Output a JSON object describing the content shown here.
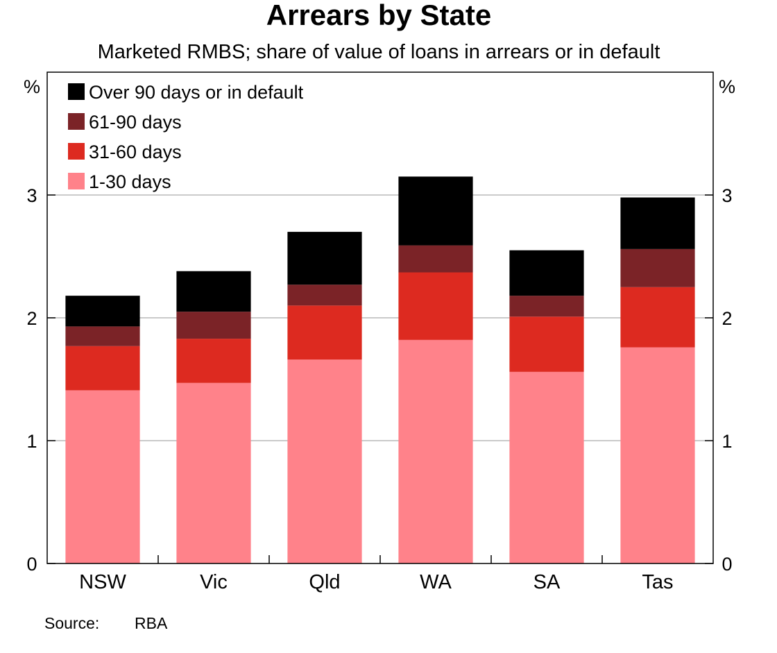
{
  "chart_data": {
    "type": "bar",
    "stacked": true,
    "title": "Arrears by State",
    "subtitle": "Marketed RMBS; share of value of loans in arrears or in default",
    "ylabel_left": "%",
    "ylabel_right": "%",
    "ylim": [
      0,
      4
    ],
    "yticks": [
      0,
      1,
      2,
      3
    ],
    "grid": true,
    "legend_position": "top-left",
    "categories": [
      "NSW",
      "Vic",
      "Qld",
      "WA",
      "SA",
      "Tas"
    ],
    "series": [
      {
        "name": "1-30 days",
        "color": "#ff828a",
        "values": [
          1.41,
          1.47,
          1.66,
          1.82,
          1.56,
          1.76
        ]
      },
      {
        "name": "31-60 days",
        "color": "#dd2a20",
        "values": [
          0.36,
          0.36,
          0.44,
          0.55,
          0.45,
          0.49
        ]
      },
      {
        "name": "61-90 days",
        "color": "#7b2327",
        "values": [
          0.16,
          0.22,
          0.17,
          0.22,
          0.17,
          0.31
        ]
      },
      {
        "name": "Over 90 days or in default",
        "color": "#000000",
        "values": [
          0.25,
          0.33,
          0.43,
          0.56,
          0.37,
          0.42
        ]
      }
    ],
    "legend_order": [
      3,
      2,
      1,
      0
    ],
    "source_label": "Source:",
    "source": "RBA"
  }
}
